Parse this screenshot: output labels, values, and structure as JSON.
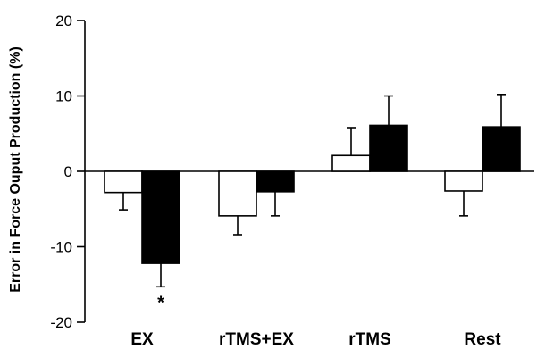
{
  "chart_data": {
    "type": "bar",
    "title": "",
    "xlabel": "",
    "ylabel": "Error in Force Ouput Production (%)",
    "ylim": [
      -20,
      20
    ],
    "yticks": [
      20,
      10,
      0,
      -10,
      -20
    ],
    "grid": false,
    "categories": [
      "EX",
      "rTMS+EX",
      "rTMS",
      "Rest"
    ],
    "series": [
      {
        "color": "#ffffff",
        "values": [
          -2.8,
          -5.9,
          2.1,
          -2.6
        ],
        "error": [
          2.3,
          2.5,
          3.7,
          3.3
        ]
      },
      {
        "color": "#000000",
        "values": [
          -12.2,
          -2.7,
          6.1,
          5.9
        ],
        "error": [
          3.1,
          3.2,
          3.9,
          4.3
        ]
      }
    ],
    "annotations": [
      {
        "text": "*",
        "category": "EX",
        "series": 1
      }
    ]
  }
}
